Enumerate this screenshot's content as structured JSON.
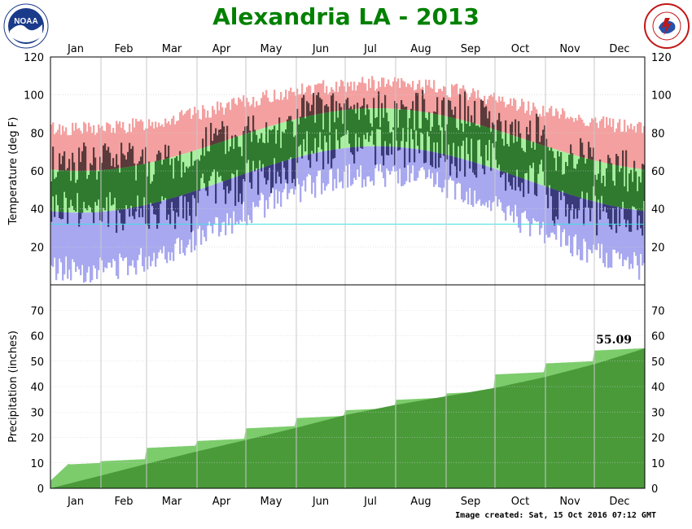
{
  "header": {
    "title": "Alexandria LA - 2013",
    "left_logo_text": "NOAA",
    "right_logo_text": "NATIONAL WEATHER SERVICE"
  },
  "footer": {
    "created": "Image created: Sat, 15 Oct 2016 07:12 GMT"
  },
  "colors": {
    "record_high_band": "#f4a0a0",
    "normal_band": "#a8f0a0",
    "record_low_band": "#a8a8f0",
    "actual_temp_bar": "#2f7a2f",
    "actual_temp_outside_normal_dark": "#5a3a3a",
    "actual_precip": "#4a9a3a",
    "normal_precip": "#7ccc6c",
    "freezing_line": "#40e0e0",
    "title": "#008000"
  },
  "chart_data": [
    {
      "type": "area",
      "name": "temperature",
      "ylabel": "Temperature (deg F)",
      "ylim": [
        0,
        120
      ],
      "yticks": [
        20,
        40,
        60,
        80,
        100,
        120
      ],
      "months": [
        "Jan",
        "Feb",
        "Mar",
        "Apr",
        "May",
        "Jun",
        "Jul",
        "Aug",
        "Sep",
        "Oct",
        "Nov",
        "Dec"
      ],
      "freezing_line": 32,
      "grid": true,
      "record_high_monthly": [
        82,
        85,
        90,
        93,
        97,
        102,
        106,
        106,
        103,
        97,
        89,
        84
      ],
      "normal_high_monthly": [
        60,
        64,
        72,
        79,
        86,
        91,
        93,
        93,
        88,
        80,
        70,
        61
      ],
      "normal_low_monthly": [
        38,
        41,
        48,
        55,
        63,
        70,
        73,
        72,
        66,
        55,
        46,
        39
      ],
      "record_low_monthly": [
        8,
        10,
        18,
        30,
        40,
        50,
        58,
        56,
        44,
        28,
        16,
        8
      ],
      "actual_high_monthly": [
        64,
        66,
        64,
        76,
        83,
        91,
        91,
        92,
        91,
        80,
        68,
        60
      ],
      "actual_low_monthly": [
        40,
        38,
        38,
        50,
        58,
        71,
        72,
        72,
        67,
        55,
        42,
        36
      ]
    },
    {
      "type": "area",
      "name": "precipitation",
      "ylabel": "Precipitation (inches)",
      "ylim": [
        0,
        80
      ],
      "yticks": [
        0,
        10,
        20,
        30,
        40,
        50,
        60,
        70
      ],
      "months": [
        "Jan",
        "Feb",
        "Mar",
        "Apr",
        "May",
        "Jun",
        "Jul",
        "Aug",
        "Sep",
        "Oct",
        "Nov",
        "Dec"
      ],
      "annotation": "55.09",
      "grid": true,
      "normal_cumulative_month_end": [
        5.0,
        9.6,
        14.5,
        19.0,
        23.8,
        28.8,
        32.8,
        36.2,
        39.5,
        43.8,
        48.8,
        55.0
      ],
      "actual_cumulative_month_end": [
        10.0,
        11.5,
        16.8,
        19.5,
        24.5,
        28.5,
        31.6,
        35.7,
        38.2,
        45.7,
        50.0,
        55.09
      ]
    }
  ]
}
